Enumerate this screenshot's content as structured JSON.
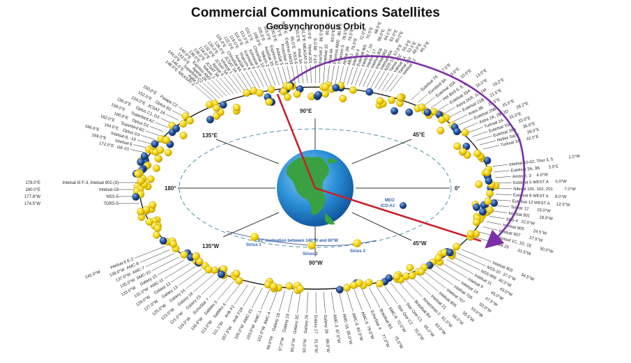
{
  "title": "Commercial Communications Satellites",
  "subtitle": "Geosynchronous Orbit",
  "directions": {
    "e90": "90°E",
    "e45": "45°E",
    "e135": "135°E",
    "w180": "180°",
    "zero": "0°",
    "w135": "135°W",
    "w90": "90°W",
    "w45": "45°W"
  },
  "meo_label": "MEO",
  "meo_sat": "ICO-A1",
  "inclination_note": "63° Inclination between 140°W and 60°W",
  "sirius": [
    "Sirius 1",
    "Sirius 2",
    "Sirius 3"
  ],
  "left_labels": [
    {
      "deg": "178.0°E",
      "name": "Intelsat III F-3, Intelsat 902-(3)"
    },
    {
      "deg": "180.0°E",
      "name": "Intelsat-18"
    },
    {
      "deg": "177.8°W",
      "name": "NSS-5"
    },
    {
      "deg": "174.5°W",
      "name": "TDRS-5"
    }
  ],
  "upper_left_labels": [
    {
      "deg": "172.0°E",
      "name": "GE-23"
    },
    {
      "deg": "169.0°E",
      "name": "Intelsat-5"
    },
    {
      "deg": "166.0°E",
      "name": "Intelsat-8, -19"
    },
    {
      "deg": "164.0°E",
      "name": "Optus D3"
    },
    {
      "deg": "162.0°E",
      "name": "Superbird B2"
    },
    {
      "deg": "160.0°E",
      "name": "Optus D1"
    },
    {
      "deg": "158.0°E",
      "name": "Superbird A2"
    },
    {
      "deg": "156.0°E",
      "name": "Optus C1, D3"
    },
    {
      "deg": "154.0°E",
      "name": "JCSAT 2A"
    },
    {
      "deg": "152.0°E",
      "name": "Optus B3"
    },
    {
      "deg": "150.0°E",
      "name": "Palapa C2"
    }
  ],
  "right_labels": [
    {
      "deg": "1.0°W",
      "name": "Intelsat 10-02, Thor 3, 5"
    },
    {
      "deg": "3.0°E",
      "name": "Eutelsat 3A, 3B"
    },
    {
      "deg": "4.0°W",
      "name": "Amos 2, 3"
    },
    {
      "deg": "5.0°W",
      "name": "Eutelsat 5 WEST A"
    },
    {
      "deg": "7.0°W",
      "name": "Nilesat 101, 102, 201"
    },
    {
      "deg": "8.0°W",
      "name": "Eutelsat 8 WEST A"
    },
    {
      "deg": "12.5°W",
      "name": "Eutelsat 12 WEST A"
    },
    {
      "deg": "15.0°W",
      "name": "Telstar 12"
    },
    {
      "deg": "18.0°W",
      "name": "Intelsat 901"
    },
    {
      "deg": "22.0°W",
      "name": "SES-4"
    },
    {
      "deg": "24.5°W",
      "name": "Intelsat 905"
    },
    {
      "deg": "27.5°W",
      "name": "Intelsat 907"
    },
    {
      "deg": "30.0°W",
      "name": "Hispasat 1C, 1D, 1E"
    },
    {
      "deg": "31.5°W",
      "name": "Intelsat 25"
    }
  ],
  "upper_right_labels": [
    {
      "deg": "7.0°E",
      "name": "Eutelsat 7A"
    },
    {
      "deg": "9.0°E",
      "name": "Eurobird 9A"
    },
    {
      "deg": "10.0°E",
      "name": "Eutelsat 10A"
    },
    {
      "deg": "13.0°E",
      "name": "Hot Bird 6, 8, 9"
    },
    {
      "deg": "16.0°E",
      "name": "Eutelsat 16A"
    },
    {
      "deg": "19.2°E",
      "name": "Astra 1KR, 1L, 1M"
    },
    {
      "deg": "21.5°E",
      "name": "Eutelsat 21B"
    },
    {
      "deg": "23.5°E",
      "name": "Astra 3B"
    },
    {
      "deg": "25.5°E",
      "name": "Eutelsat 25B"
    },
    {
      "deg": "28.2°E",
      "name": "Astra 2A, 2B, 2D"
    },
    {
      "deg": "31.0°E",
      "name": "Turksat 2A"
    },
    {
      "deg": "33.0°E",
      "name": "Eutelsat 33A"
    },
    {
      "deg": "36.0°E",
      "name": "Eutelsat 36A"
    },
    {
      "deg": "39.0°E",
      "name": "Hellas Sat 2"
    },
    {
      "deg": "42.0°E",
      "name": "Turksat 3A"
    }
  ],
  "bottom_labels": [
    {
      "deg": "142.0°W",
      "name": "Intelsat 8 E-2"
    },
    {
      "deg": "139.0°W",
      "name": "AMC-8"
    },
    {
      "deg": "137.0°W",
      "name": "AMC-7"
    },
    {
      "deg": "135.0°W",
      "name": "AMC-10"
    },
    {
      "deg": "133.0°W",
      "name": "Galaxy 15"
    },
    {
      "deg": "131.0°W",
      "name": "AMC-11"
    },
    {
      "deg": "129.0°W",
      "name": "Galaxy 12"
    },
    {
      "deg": "127.0°W",
      "name": "Galaxy 13"
    },
    {
      "deg": "125.0°W",
      "name": "Galaxy 14"
    },
    {
      "deg": "123.0°W",
      "name": "Galaxy 18"
    },
    {
      "deg": "121.0°W",
      "name": "Galaxy 23"
    },
    {
      "deg": "119.0°W",
      "name": "EchoStar 7"
    },
    {
      "deg": "116.8°W",
      "name": "SatMex 5"
    },
    {
      "deg": "113.0°W",
      "name": "SatMex 6"
    },
    {
      "deg": "111.1°W",
      "name": "Anik F2"
    },
    {
      "deg": "107.3°W",
      "name": "Anik F1R"
    },
    {
      "deg": "105.0°W",
      "name": "AMC-15"
    },
    {
      "deg": "103.0°W",
      "name": "AMC-1"
    },
    {
      "deg": "101.0°W",
      "name": "AMC-4"
    },
    {
      "deg": "99.0°W",
      "name": "Galaxy 16"
    },
    {
      "deg": "97.0°W",
      "name": "Galaxy 19"
    },
    {
      "deg": "95.0°W",
      "name": "Galaxy 3C"
    },
    {
      "deg": "93.0°W",
      "name": "Galaxy 26"
    },
    {
      "deg": "91.0°W",
      "name": "Galaxy 17"
    },
    {
      "deg": "89.0°W",
      "name": "Galaxy 28"
    },
    {
      "deg": "87.0°W",
      "name": "AMC-3"
    },
    {
      "deg": "85.0°W",
      "name": "AMC-16"
    },
    {
      "deg": "83.0°W",
      "name": "AMC-9"
    },
    {
      "deg": "79.0°W",
      "name": "AMC-5"
    },
    {
      "deg": "77.0°W",
      "name": "EchoStar 4"
    },
    {
      "deg": "75.0°W",
      "name": "Brasilsat B3"
    },
    {
      "deg": "72.0°W",
      "name": "AMC-6"
    },
    {
      "deg": "70.0°W",
      "name": "Star One C2"
    },
    {
      "deg": "65.0°W",
      "name": "Star One C1"
    },
    {
      "deg": "63.0°W",
      "name": "Brasilsat B4"
    },
    {
      "deg": "61.0°W",
      "name": "Amazonas 2"
    },
    {
      "deg": "58.0°W",
      "name": "Intelsat 21"
    },
    {
      "deg": "55.5°W",
      "name": "Intelsat 805"
    },
    {
      "deg": "53.0°W",
      "name": "Intelsat 707"
    },
    {
      "deg": "50.0°W",
      "name": "Intelsat 705"
    },
    {
      "deg": "47.5°W",
      "name": "Intelsat 14"
    },
    {
      "deg": "45.0°W",
      "name": "Intelsat 9"
    },
    {
      "deg": "43.0°W",
      "name": "Intelsat 11"
    },
    {
      "deg": "40.5°W",
      "name": "NSS-806"
    },
    {
      "deg": "37.5°W",
      "name": "NSS-10"
    },
    {
      "deg": "34.5°W",
      "name": "Intelsat 903"
    }
  ],
  "top_labels": [
    {
      "deg": "148.0°E",
      "name": "MEASAT-2"
    },
    {
      "deg": "146.0°E",
      "name": "Agila 2"
    },
    {
      "deg": "144.0°E",
      "name": "Superbird C2"
    },
    {
      "deg": "142.0°E",
      "name": "Apstar 2R"
    },
    {
      "deg": "140.0°E",
      "name": "Express AM3"
    },
    {
      "deg": "138.0°E",
      "name": "Telkom 1"
    },
    {
      "deg": "136.0°E",
      "name": "JCSAT 3A"
    },
    {
      "deg": "134.0°E",
      "name": "Apstar 6"
    },
    {
      "deg": "132.0°E",
      "name": "JCSAT 5A"
    },
    {
      "deg": "130.0°E",
      "name": "Vinasat 1"
    },
    {
      "deg": "128.0°E",
      "name": "JCSAT 3A"
    },
    {
      "deg": "125.0°E",
      "name": "ChinaSat 6A"
    },
    {
      "deg": "122.0°E",
      "name": "AsiaSat 4"
    },
    {
      "deg": "119.0°E",
      "name": "Thaicom 4"
    },
    {
      "deg": "116.0°E",
      "name": "Koreasat 6"
    },
    {
      "deg": "113.0°E",
      "name": "Koreasat 5"
    },
    {
      "deg": "110.5°E",
      "name": "ChinaSat 10"
    },
    {
      "deg": "108.0°E",
      "name": "Telkom 2"
    },
    {
      "deg": "105.5°E",
      "name": "AsiaSat 3S"
    },
    {
      "deg": "103.0°E",
      "name": "Express A2"
    },
    {
      "deg": "100.5°E",
      "name": "AsiaSat 5"
    },
    {
      "deg": "98.5°E",
      "name": "ProtoStar 2"
    },
    {
      "deg": "96.5°E",
      "name": "Express AM33"
    },
    {
      "deg": "95.0°E",
      "name": "NSS-6"
    },
    {
      "deg": "93.5°E",
      "name": "Insat 3A"
    },
    {
      "deg": "91.5°E",
      "name": "MEASAT-3"
    },
    {
      "deg": "90.0°E",
      "name": "Yamal 201"
    },
    {
      "deg": "88.0°E",
      "name": "ST-2"
    },
    {
      "deg": "86.5°E",
      "name": "KazSat 2"
    },
    {
      "deg": "85.0°E",
      "name": "Intelsat 15"
    },
    {
      "deg": "83.0°E",
      "name": "Insat 4A"
    },
    {
      "deg": "80.0°E",
      "name": "Express AM2"
    },
    {
      "deg": "78.5°E",
      "name": "Thaicom 5"
    },
    {
      "deg": "76.5°E",
      "name": "Apstar 2R"
    },
    {
      "deg": "75.0°E",
      "name": "ABS-1"
    },
    {
      "deg": "72.0°E",
      "name": "Intelsat 4"
    },
    {
      "deg": "70.5°E",
      "name": "Eutelsat W5"
    },
    {
      "deg": "68.5°E",
      "name": "Intelsat 7, 10"
    },
    {
      "deg": "66.0°E",
      "name": "Intelsat 17"
    },
    {
      "deg": "64.0°E",
      "name": "Intelsat 906"
    },
    {
      "deg": "62.0°E",
      "name": "Intelsat 902"
    },
    {
      "deg": "60.0°E",
      "name": "Intelsat 904"
    },
    {
      "deg": "57.0°E",
      "name": "NSS-12"
    },
    {
      "deg": "55.0°E",
      "name": "Yamal 202"
    },
    {
      "deg": "52.5°E",
      "name": "Yahsat 1A"
    },
    {
      "deg": "49.0°E",
      "name": "Yamal 202"
    },
    {
      "deg": "45.0°E",
      "name": "Intelsat 12"
    }
  ],
  "colors": {
    "orbit_ring": "#1a1a1a",
    "inner_ring": "#4a8fa8",
    "satellite_yellow": "#f5d60a",
    "satellite_blue": "#1f4f9c",
    "red_line": "#c8202a",
    "purple_arrow": "#7a2fa6",
    "globe": "#2b8fd6",
    "land": "#3aa142"
  }
}
